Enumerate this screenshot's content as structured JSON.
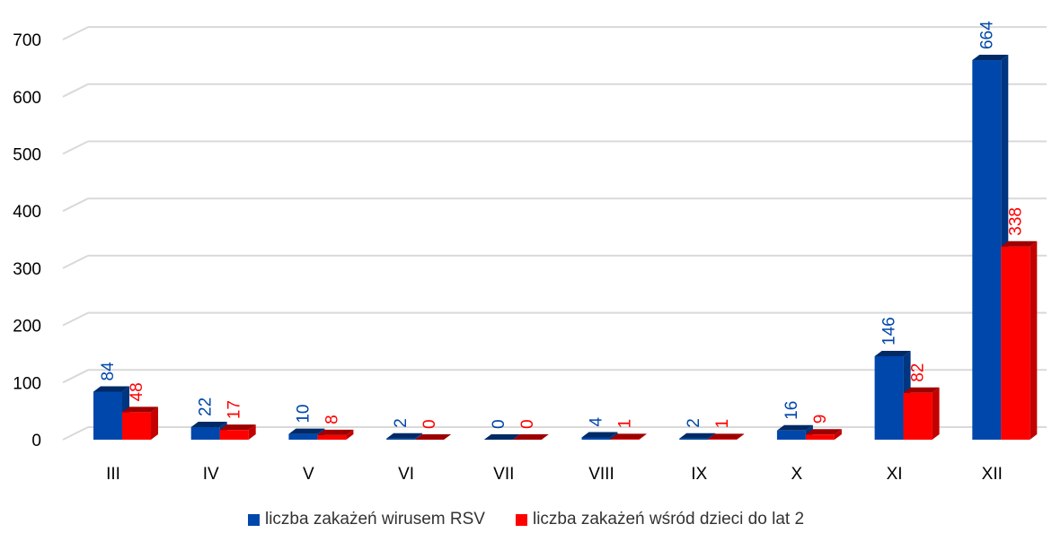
{
  "chart_data": {
    "type": "bar",
    "categories": [
      "III",
      "IV",
      "V",
      "VI",
      "VII",
      "VIII",
      "IX",
      "X",
      "XI",
      "XII"
    ],
    "series": [
      {
        "name": "liczba zakażeń wirusem RSV",
        "values": [
          84,
          22,
          10,
          2,
          0,
          4,
          2,
          16,
          146,
          664
        ],
        "color": "#0047ab"
      },
      {
        "name": "liczba zakażeń wśród dzieci do lat 2",
        "values": [
          48,
          17,
          8,
          0,
          0,
          1,
          1,
          9,
          82,
          338
        ],
        "color": "#ff0000"
      }
    ],
    "yticks": [
      "0",
      "100",
      "200",
      "300",
      "400",
      "500",
      "600",
      "700"
    ],
    "ylim": [
      0,
      700
    ],
    "grid": true,
    "legend_position": "bottom",
    "style": "3d-clustered-column"
  }
}
